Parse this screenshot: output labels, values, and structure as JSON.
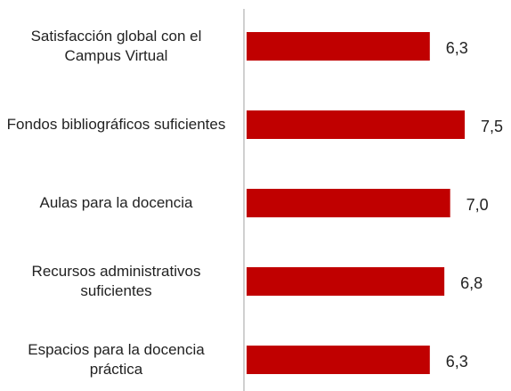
{
  "chart_data": {
    "type": "bar",
    "orientation": "horizontal",
    "categories": [
      "Satisfacción global con el Campus Virtual",
      "Fondos bibliográficos suficientes",
      "Aulas para la docencia",
      "Recursos administrativos suficientes",
      "Espacios para la docencia práctica"
    ],
    "values": [
      6.3,
      7.5,
      7.0,
      6.8,
      6.3
    ],
    "value_labels": [
      "6,3",
      "7,5",
      "7,0",
      "6,8",
      "6,3"
    ],
    "color": "#c00000",
    "xlim": [
      0,
      9
    ]
  }
}
